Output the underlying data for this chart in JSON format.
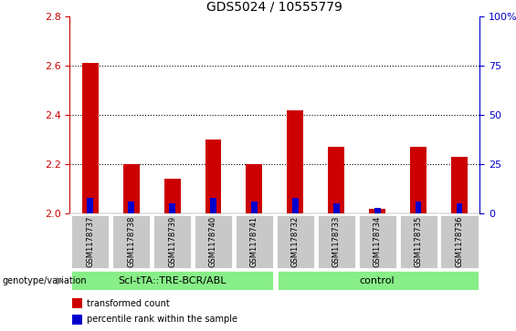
{
  "title": "GDS5024 / 10555779",
  "categories": [
    "GSM1178737",
    "GSM1178738",
    "GSM1178739",
    "GSM1178740",
    "GSM1178741",
    "GSM1178732",
    "GSM1178733",
    "GSM1178734",
    "GSM1178735",
    "GSM1178736"
  ],
  "red_values": [
    2.61,
    2.2,
    2.14,
    2.3,
    2.2,
    2.42,
    2.27,
    2.02,
    2.27,
    2.23
  ],
  "blue_percentile": [
    8,
    6,
    5,
    8,
    6,
    8,
    5,
    3,
    6,
    5
  ],
  "group1_label": "Scl-tTA::TRE-BCR/ABL",
  "group2_label": "control",
  "group1_count": 5,
  "group2_count": 5,
  "ylim_left": [
    2.0,
    2.8
  ],
  "ylim_right": [
    0,
    100
  ],
  "yticks_left": [
    2.0,
    2.2,
    2.4,
    2.6,
    2.8
  ],
  "yticks_right": [
    0,
    25,
    50,
    75,
    100
  ],
  "left_axis_color": "#cc0000",
  "right_axis_color": "#0000cc",
  "bar_color_red": "#cc0000",
  "bar_color_blue": "#0000cc",
  "group_bg_color": "#88ee88",
  "sample_bg_color": "#c8c8c8",
  "legend_transformed": "transformed count",
  "legend_percentile": "percentile rank within the sample",
  "genotype_label": "genotype/variation",
  "title_fontsize": 10,
  "tick_fontsize": 8,
  "label_fontsize": 7,
  "sample_fontsize": 6,
  "group_fontsize": 8
}
